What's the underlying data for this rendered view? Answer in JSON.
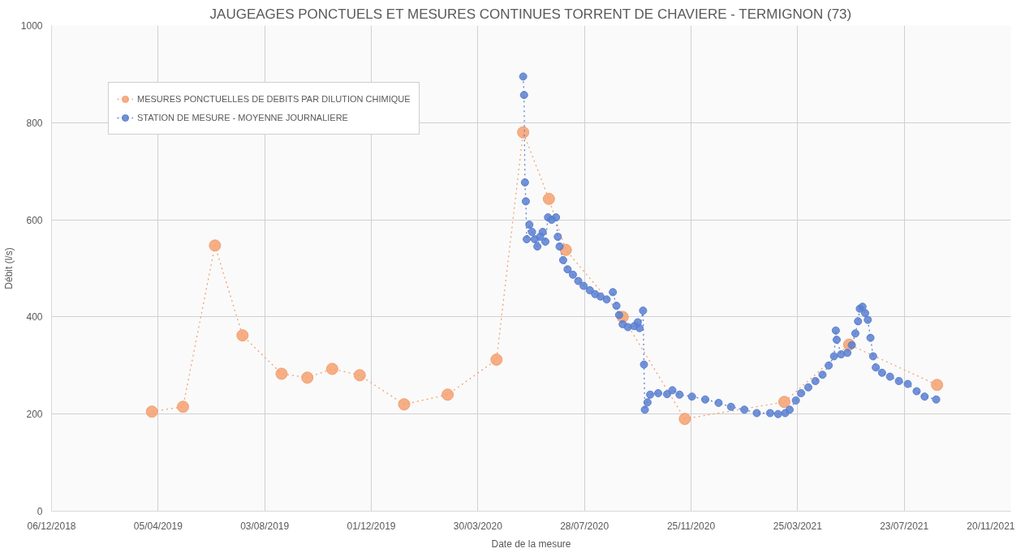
{
  "chart_data": {
    "type": "line",
    "title": "JAUGEAGES PONCTUELS ET MESURES CONTINUES TORRENT DE CHAVIERE - TERMIGNON (73)",
    "xlabel": "Date de la mesure",
    "ylabel": "Débit (l/s)",
    "xlim": [
      "2018-12-06",
      "2021-11-20"
    ],
    "xticks": [
      {
        "value": "2018-12-06",
        "label": "06/12/2018"
      },
      {
        "value": "2019-04-05",
        "label": "05/04/2019"
      },
      {
        "value": "2019-08-03",
        "label": "03/08/2019"
      },
      {
        "value": "2019-12-01",
        "label": "01/12/2019"
      },
      {
        "value": "2020-03-30",
        "label": "30/03/2020"
      },
      {
        "value": "2020-07-28",
        "label": "28/07/2020"
      },
      {
        "value": "2020-11-25",
        "label": "25/11/2020"
      },
      {
        "value": "2021-03-25",
        "label": "25/03/2021"
      },
      {
        "value": "2021-07-23",
        "label": "23/07/2021"
      },
      {
        "value": "2021-11-20",
        "label": "20/11/2021"
      }
    ],
    "ylim": [
      0,
      1000
    ],
    "yticks": [
      0,
      200,
      400,
      600,
      800,
      1000
    ],
    "grid": true,
    "legend": "top left",
    "marker": "circle",
    "line_style": "dotted",
    "series": [
      {
        "name": "MESURES PONCTUELLES DE DEBITS PAR DILUTION CHIMIQUE",
        "color": "#f4a070",
        "x": [
          "2019-03-29",
          "2019-05-03",
          "2019-06-08",
          "2019-07-09",
          "2019-08-22",
          "2019-09-20",
          "2019-10-18",
          "2019-11-18",
          "2020-01-07",
          "2020-02-25",
          "2020-04-20",
          "2020-05-20",
          "2020-06-18",
          "2020-07-07",
          "2020-09-09",
          "2020-11-18",
          "2021-03-10",
          "2021-05-22",
          "2021-08-29"
        ],
        "values": [
          205,
          215,
          547,
          362,
          283,
          275,
          293,
          280,
          220,
          240,
          312,
          780,
          643,
          538,
          400,
          190,
          225,
          343,
          260
        ]
      },
      {
        "name": "STATION DE MESURE - MOYENNE JOURNALIERE",
        "color": "#5a7fd0",
        "x": [
          "2020-05-20",
          "2020-05-21",
          "2020-05-22",
          "2020-05-23",
          "2020-05-24",
          "2020-05-27",
          "2020-05-30",
          "2020-06-02",
          "2020-06-05",
          "2020-06-08",
          "2020-06-11",
          "2020-06-14",
          "2020-06-17",
          "2020-06-21",
          "2020-06-26",
          "2020-06-28",
          "2020-06-30",
          "2020-07-04",
          "2020-07-09",
          "2020-07-15",
          "2020-07-21",
          "2020-07-27",
          "2020-08-03",
          "2020-08-09",
          "2020-08-15",
          "2020-08-22",
          "2020-08-29",
          "2020-09-02",
          "2020-09-05",
          "2020-09-09",
          "2020-09-15",
          "2020-09-22",
          "2020-09-26",
          "2020-09-28",
          "2020-10-02",
          "2020-10-03",
          "2020-10-04",
          "2020-10-07",
          "2020-10-10",
          "2020-10-19",
          "2020-10-29",
          "2020-11-04",
          "2020-11-12",
          "2020-11-26",
          "2020-12-11",
          "2020-12-26",
          "2021-01-09",
          "2021-01-24",
          "2021-02-07",
          "2021-02-22",
          "2021-03-03",
          "2021-03-11",
          "2021-03-16",
          "2021-03-23",
          "2021-03-29",
          "2021-04-06",
          "2021-04-14",
          "2021-04-22",
          "2021-04-29",
          "2021-05-05",
          "2021-05-07",
          "2021-05-08",
          "2021-05-13",
          "2021-05-20",
          "2021-05-25",
          "2021-05-29",
          "2021-06-01",
          "2021-06-03",
          "2021-06-06",
          "2021-06-09",
          "2021-06-12",
          "2021-06-15",
          "2021-06-18",
          "2021-06-21",
          "2021-06-28",
          "2021-07-07",
          "2021-07-17",
          "2021-07-27",
          "2021-08-06",
          "2021-08-15",
          "2021-08-28"
        ],
        "values": [
          895,
          857,
          677,
          638,
          560,
          590,
          575,
          560,
          545,
          565,
          575,
          555,
          605,
          600,
          605,
          565,
          545,
          517,
          498,
          487,
          474,
          464,
          455,
          447,
          442,
          436,
          451,
          423,
          404,
          385,
          379,
          381,
          389,
          377,
          413,
          302,
          209,
          224,
          240,
          243,
          241,
          249,
          240,
          236,
          230,
          223,
          215,
          209,
          202,
          202,
          200,
          202,
          209,
          228,
          243,
          255,
          268,
          281,
          300,
          319,
          372,
          353,
          323,
          326,
          342,
          366,
          391,
          417,
          421,
          408,
          394,
          357,
          319,
          296,
          285,
          277,
          268,
          262,
          247,
          236,
          230
        ]
      }
    ]
  }
}
